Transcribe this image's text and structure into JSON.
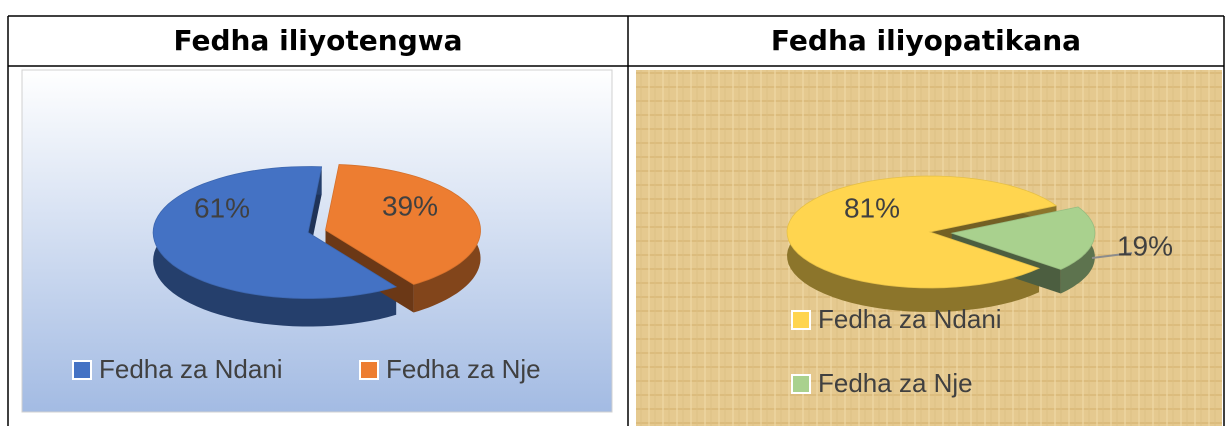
{
  "chart_data": [
    {
      "type": "pie",
      "title": "Fedha iliyotengwa",
      "categories": [
        "Fedha za Ndani",
        "Fedha za Nje"
      ],
      "values": [
        61,
        39
      ],
      "value_labels": [
        "61%",
        "39%"
      ],
      "colors": [
        "#4472c4",
        "#ed7d31"
      ],
      "legend": "bottom"
    },
    {
      "type": "pie",
      "title": "Fedha iliyopatikana",
      "categories": [
        "Fedha za Ndani",
        "Fedha za Nje"
      ],
      "values": [
        81,
        19
      ],
      "value_labels": [
        "81%",
        "19%"
      ],
      "colors": [
        "#ffd54f",
        "#a9d18e"
      ],
      "legend": "left"
    }
  ]
}
